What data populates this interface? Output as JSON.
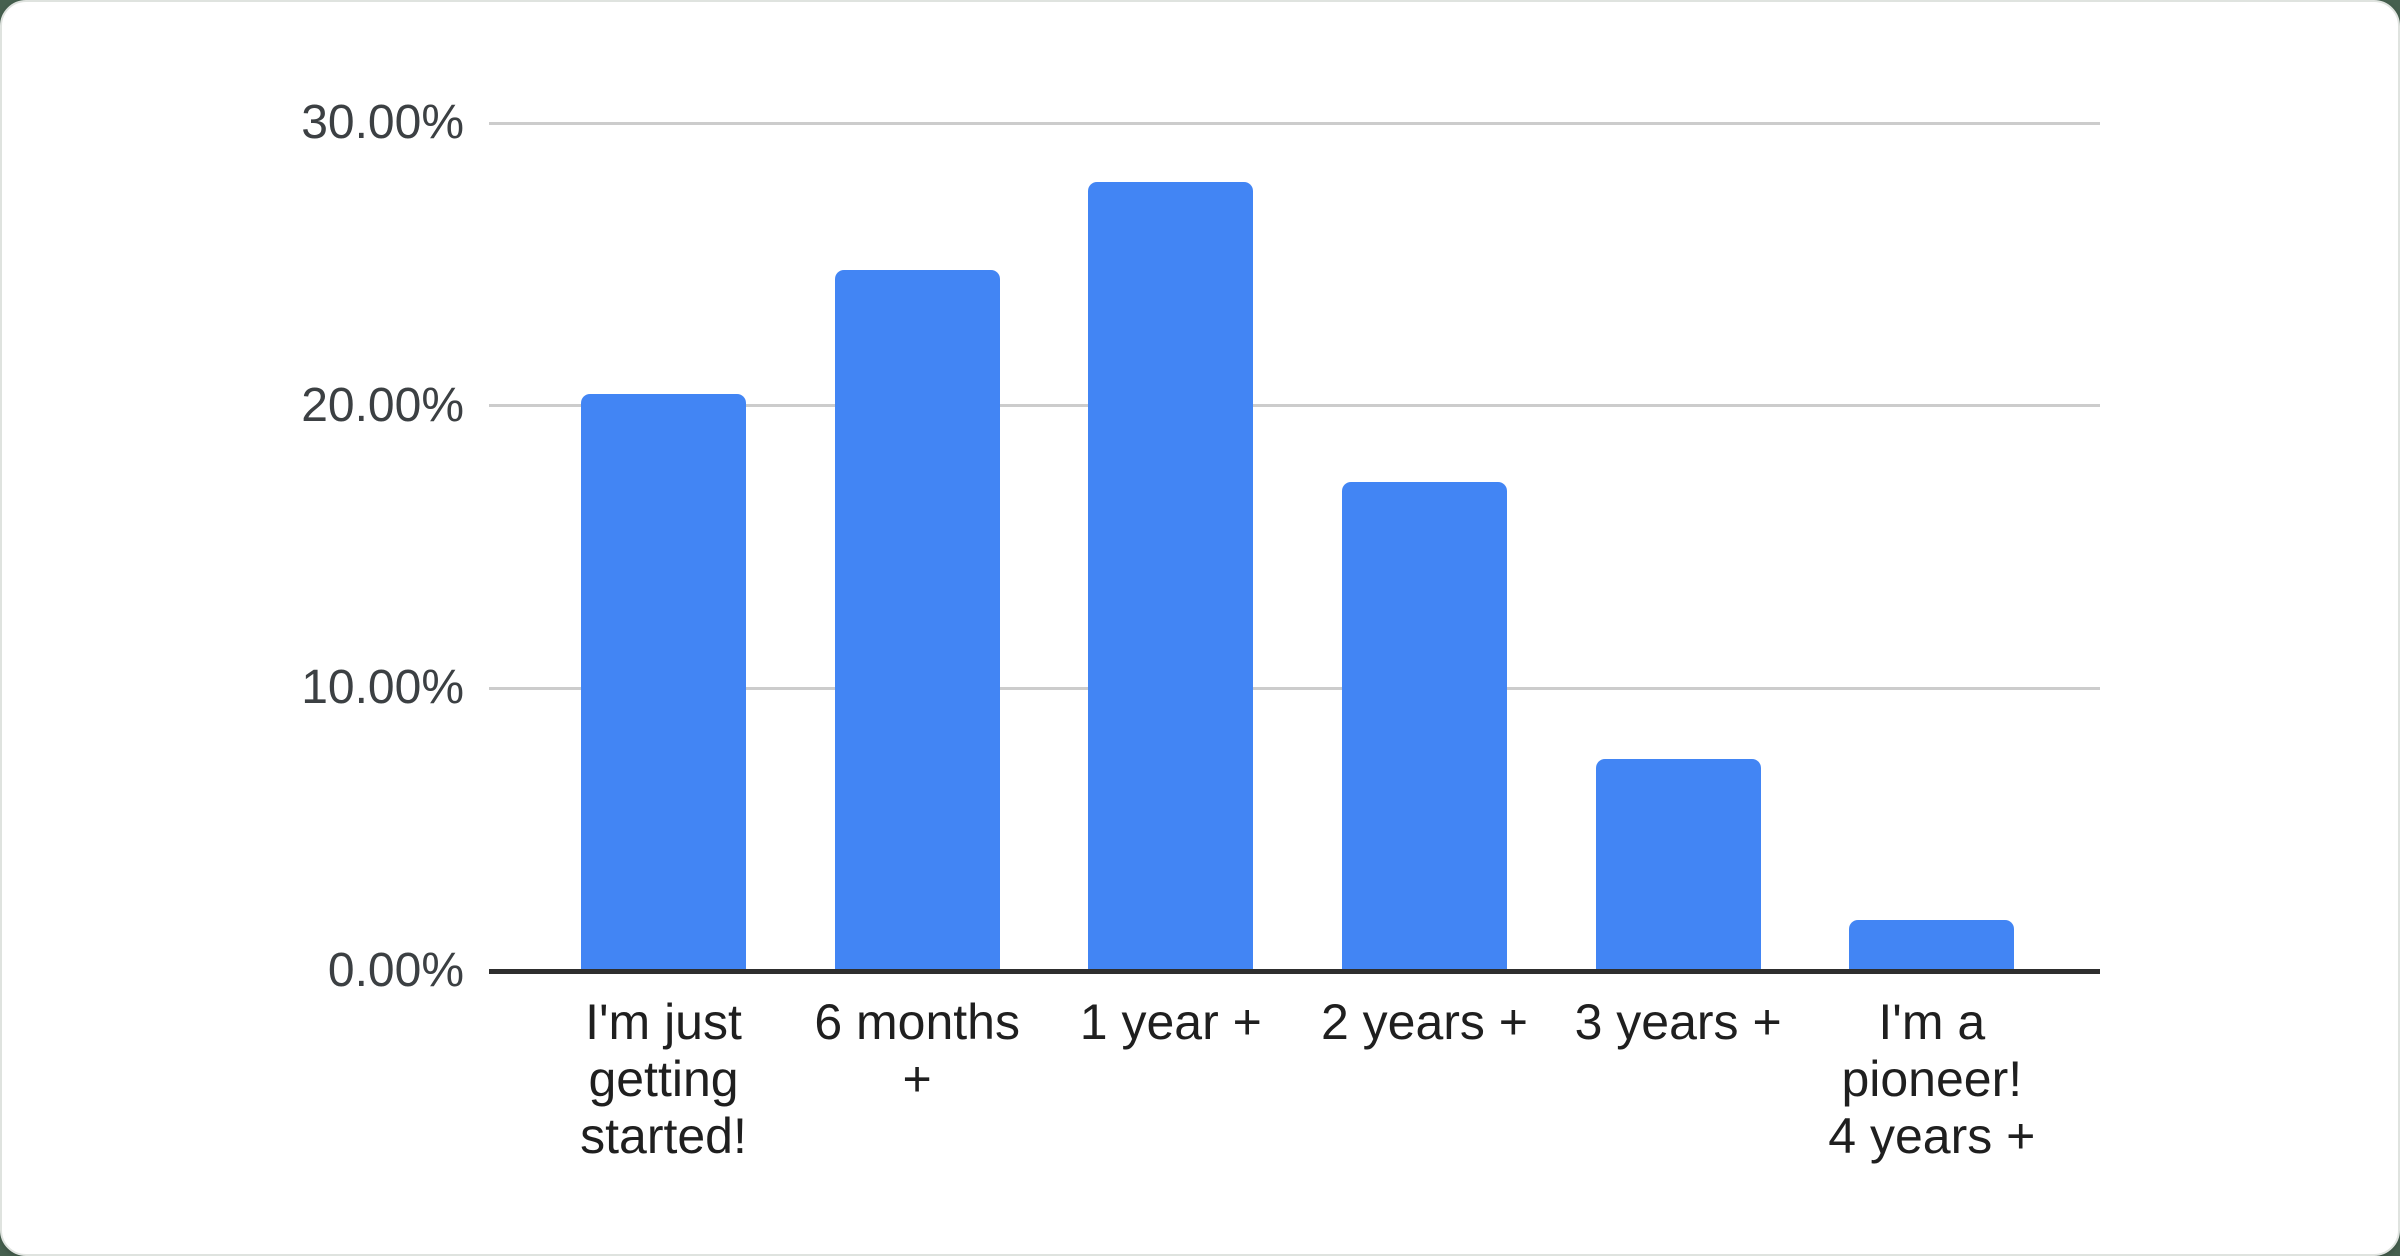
{
  "page": {
    "background_color": "#46604f",
    "card_color": "#ffffff",
    "card_border_color": "#dfe3df"
  },
  "chart_data": {
    "type": "bar",
    "title": "",
    "categories": [
      "I'm just getting started!",
      "6 months +",
      "1 year +",
      "2 years +",
      "3 years +",
      "I'm a pioneer! 4 years +"
    ],
    "category_lines": [
      [
        "I'm just",
        "getting",
        "started!"
      ],
      [
        "6 months",
        "+"
      ],
      [
        "1 year +"
      ],
      [
        "2 years +"
      ],
      [
        "3 years +"
      ],
      [
        "I'm a",
        "pioneer!",
        "4 years +"
      ]
    ],
    "values": [
      20.4,
      24.8,
      27.9,
      17.3,
      7.5,
      1.8
    ],
    "unit": "%",
    "xlabel": "",
    "ylabel": "",
    "ylim": [
      0,
      30
    ],
    "y_tick_values": [
      0,
      10,
      20,
      30
    ],
    "y_tick_labels": [
      "0.00%",
      "10.00%",
      "20.00%",
      "30.00%"
    ],
    "grid": "horizontal",
    "legend_position": "none",
    "bar_color": "#4285f4",
    "gridline_color": "#cccccc",
    "axis_line_color": "#2e2e2e",
    "y_label_color": "#3c4043",
    "x_label_color": "#1f1f1f"
  }
}
